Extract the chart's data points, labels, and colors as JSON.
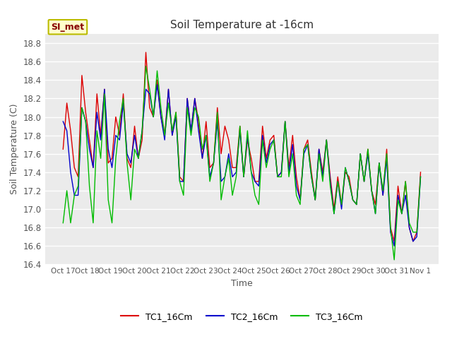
{
  "title": "Soil Temperature at -16cm",
  "xlabel": "Time",
  "ylabel": "Soil Temperature (C)",
  "ylim": [
    16.4,
    18.9
  ],
  "fig_color": "#ffffff",
  "plot_bg_color": "#ebebeb",
  "grid_color": "#ffffff",
  "legend_label": "SI_met",
  "series_labels": [
    "TC1_16Cm",
    "TC2_16Cm",
    "TC3_16Cm"
  ],
  "series_colors": [
    "#dd0000",
    "#0000cc",
    "#00bb00"
  ],
  "xtick_labels": [
    "Oct 17",
    "Oct 18",
    "Oct 19",
    "Oct 20",
    "Oct 21",
    "Oct 22",
    "Oct 23",
    "Oct 24",
    "Oct 25",
    "Oct 26",
    "Oct 27",
    "Oct 28",
    "Oct 29",
    "Oct 30",
    "Oct 31",
    "Nov 1"
  ],
  "tc1": [
    17.65,
    18.15,
    17.85,
    17.45,
    17.35,
    18.45,
    18.05,
    17.75,
    17.45,
    18.25,
    17.8,
    18.3,
    17.5,
    17.55,
    18.0,
    17.8,
    18.25,
    17.55,
    17.45,
    17.9,
    17.55,
    17.75,
    18.7,
    18.1,
    18.0,
    18.4,
    18.0,
    17.8,
    18.3,
    17.8,
    18.05,
    17.35,
    17.3,
    18.2,
    17.85,
    18.2,
    17.95,
    17.55,
    17.95,
    17.45,
    17.5,
    18.1,
    17.6,
    17.9,
    17.75,
    17.45,
    17.45,
    17.9,
    17.35,
    17.75,
    17.55,
    17.3,
    17.3,
    17.9,
    17.55,
    17.75,
    17.8,
    17.35,
    17.4,
    17.95,
    17.45,
    17.8,
    17.35,
    17.1,
    17.65,
    17.75,
    17.4,
    17.1,
    17.65,
    17.4,
    17.75,
    17.35,
    17.0,
    17.35,
    17.05,
    17.4,
    17.35,
    17.1,
    17.05,
    17.6,
    17.3,
    17.65,
    17.2,
    17.05,
    17.5,
    17.15,
    17.65,
    16.8,
    16.65,
    17.25,
    16.95,
    17.3,
    16.8,
    16.65,
    16.75,
    17.4
  ],
  "tc2": [
    17.95,
    17.85,
    17.4,
    17.15,
    17.15,
    18.1,
    17.95,
    17.65,
    17.45,
    18.05,
    17.75,
    18.3,
    17.65,
    17.45,
    17.8,
    17.75,
    18.15,
    17.6,
    17.5,
    17.8,
    17.55,
    17.85,
    18.3,
    18.25,
    18.0,
    18.35,
    18.0,
    17.75,
    18.3,
    17.8,
    18.0,
    17.3,
    17.3,
    18.2,
    17.85,
    18.2,
    17.85,
    17.55,
    17.8,
    17.35,
    17.5,
    17.95,
    17.3,
    17.35,
    17.6,
    17.35,
    17.4,
    17.85,
    17.35,
    17.8,
    17.4,
    17.3,
    17.25,
    17.8,
    17.5,
    17.7,
    17.75,
    17.35,
    17.4,
    17.95,
    17.4,
    17.7,
    17.25,
    17.1,
    17.6,
    17.7,
    17.35,
    17.1,
    17.65,
    17.35,
    17.75,
    17.3,
    16.95,
    17.3,
    17.0,
    17.45,
    17.3,
    17.1,
    17.05,
    17.6,
    17.3,
    17.6,
    17.2,
    16.95,
    17.5,
    17.15,
    17.55,
    16.75,
    16.6,
    17.15,
    16.95,
    17.15,
    16.8,
    16.65,
    16.7,
    17.35
  ],
  "tc3": [
    16.85,
    17.2,
    16.85,
    17.15,
    17.25,
    18.1,
    17.95,
    17.25,
    16.85,
    17.85,
    17.55,
    18.25,
    17.1,
    16.85,
    17.55,
    17.95,
    18.2,
    17.5,
    17.1,
    17.65,
    17.55,
    17.85,
    18.55,
    18.3,
    18.0,
    18.5,
    18.1,
    17.8,
    18.15,
    17.85,
    18.05,
    17.3,
    17.15,
    18.1,
    17.8,
    18.1,
    18.0,
    17.65,
    17.8,
    17.3,
    17.5,
    18.05,
    17.1,
    17.35,
    17.55,
    17.15,
    17.35,
    17.9,
    17.35,
    17.85,
    17.4,
    17.15,
    17.05,
    17.75,
    17.45,
    17.65,
    17.75,
    17.35,
    17.35,
    17.95,
    17.35,
    17.6,
    17.15,
    17.05,
    17.65,
    17.7,
    17.35,
    17.1,
    17.6,
    17.3,
    17.75,
    17.25,
    16.95,
    17.3,
    17.05,
    17.45,
    17.3,
    17.1,
    17.05,
    17.6,
    17.3,
    17.65,
    17.2,
    16.95,
    17.5,
    17.2,
    17.6,
    16.8,
    16.45,
    17.1,
    16.95,
    17.3,
    16.85,
    16.75,
    16.75,
    17.35
  ]
}
